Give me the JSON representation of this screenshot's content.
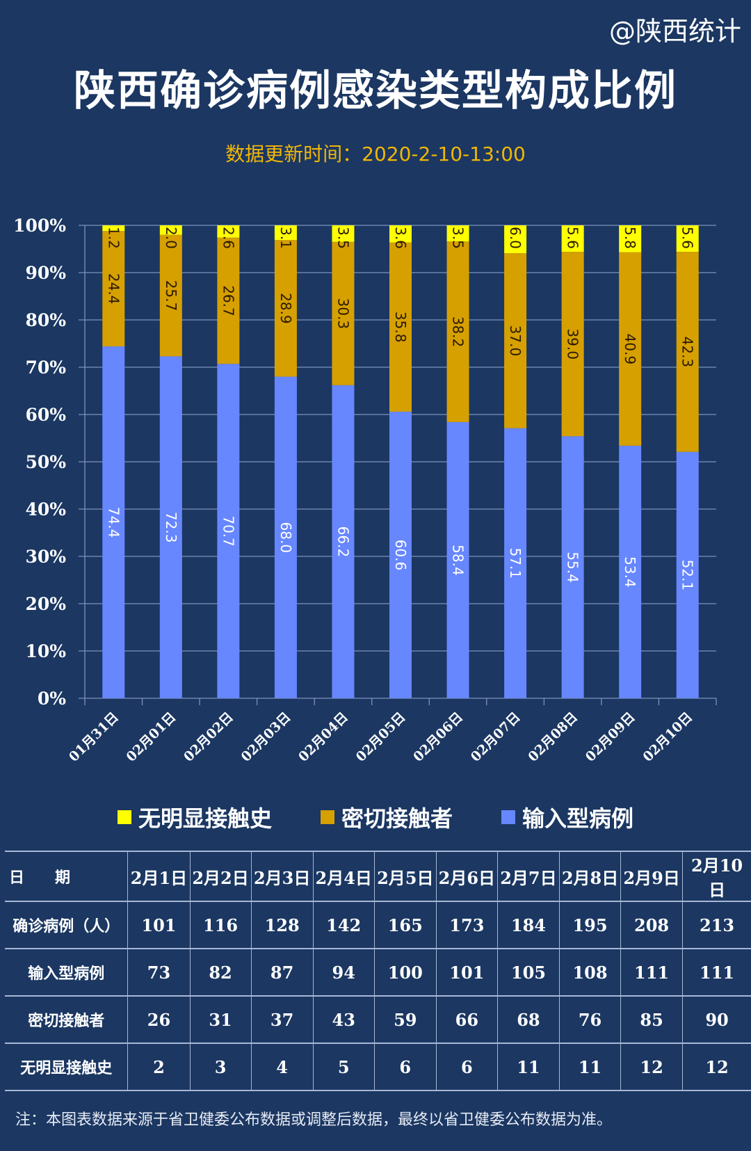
{
  "watermark": "@陕西统计",
  "title": "陕西确诊病例感染类型构成比例",
  "subtitle": "数据更新时间：2020-2-10-13:00",
  "chart_data": {
    "type": "bar",
    "stacked": true,
    "categories": [
      "01月31日",
      "02月01日",
      "02月02日",
      "02月03日",
      "02月04日",
      "02月05日",
      "02月06日",
      "02月07日",
      "02月08日",
      "02月09日",
      "02月10日"
    ],
    "series": [
      {
        "name": "输入型病例",
        "color": "#6787ff",
        "values": [
          74.4,
          72.3,
          70.7,
          68.0,
          66.2,
          60.6,
          58.4,
          57.1,
          55.4,
          53.4,
          52.1
        ]
      },
      {
        "name": "密切接触者",
        "color": "#d6a000",
        "values": [
          24.4,
          25.7,
          26.7,
          28.9,
          30.3,
          35.8,
          38.2,
          37.0,
          39.0,
          40.9,
          42.3
        ]
      },
      {
        "name": "无明显接触史",
        "color": "#ffff00",
        "values": [
          1.2,
          2.0,
          2.6,
          3.1,
          3.5,
          3.6,
          3.5,
          6.0,
          5.6,
          5.8,
          5.6
        ]
      }
    ],
    "yticks": [
      "0%",
      "10%",
      "20%",
      "30%",
      "40%",
      "50%",
      "60%",
      "70%",
      "80%",
      "90%",
      "100%"
    ],
    "ylim": [
      0,
      100
    ],
    "grid": true,
    "legend": "bottom"
  },
  "legend": [
    {
      "label": "无明显接触史",
      "color": "#ffff00"
    },
    {
      "label": "密切接触者",
      "color": "#d6a000"
    },
    {
      "label": "输入型病例",
      "color": "#6787ff"
    }
  ],
  "table": {
    "header": [
      "日　　期",
      "2月1日",
      "2月2日",
      "2月3日",
      "2月4日",
      "2月5日",
      "2月6日",
      "2月7日",
      "2月8日",
      "2月9日",
      "2月10日"
    ],
    "rows": [
      [
        "确诊病例（人）",
        "101",
        "116",
        "128",
        "142",
        "165",
        "173",
        "184",
        "195",
        "208",
        "213"
      ],
      [
        "输入型病例",
        "73",
        "82",
        "87",
        "94",
        "100",
        "101",
        "105",
        "108",
        "111",
        "111"
      ],
      [
        "密切接触者",
        "26",
        "31",
        "37",
        "43",
        "59",
        "66",
        "68",
        "76",
        "85",
        "90"
      ],
      [
        "无明显接触史",
        "2",
        "3",
        "4",
        "5",
        "6",
        "6",
        "11",
        "11",
        "12",
        "12"
      ]
    ]
  },
  "note": "注：本图表数据来源于省卫健委公布数据或调整后数据，最终以省卫健委公布数据为准。"
}
